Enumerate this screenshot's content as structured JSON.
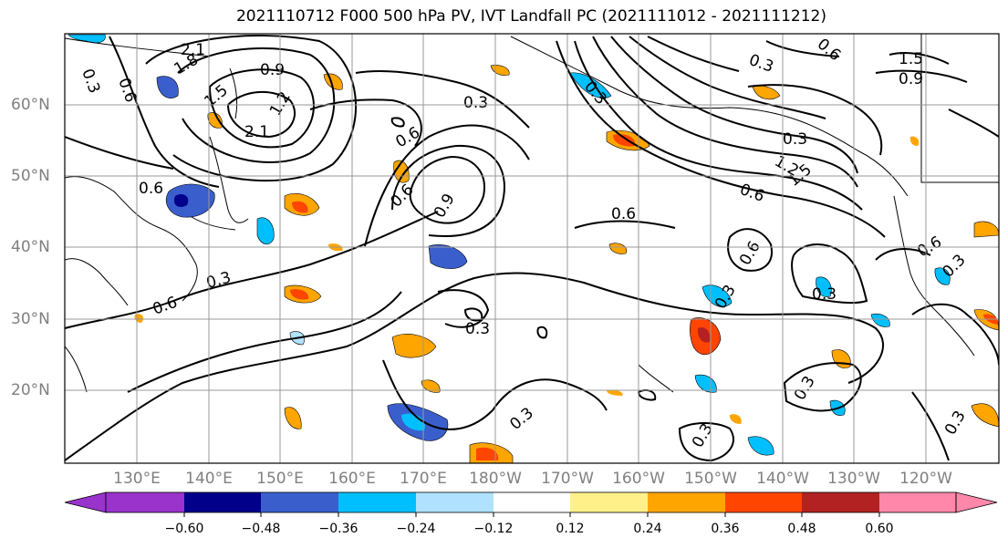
{
  "title": "2021110712 F000 500 hPa PV, IVT Landfall PC (2021111012 - 2021111212)",
  "latitude_labels": [
    "60°N",
    "50°N",
    "40°N",
    "30°N",
    "20°N"
  ],
  "longitude_labels": [
    "130°E",
    "140°E",
    "150°E",
    "160°E",
    "170°E",
    "180°W",
    "170°W",
    "160°W",
    "150°W",
    "140°W",
    "130°W",
    "120°W"
  ],
  "contour_labels": [
    "2.1",
    "1.8",
    "0.9",
    "1.5",
    "1.2",
    "2.1",
    "0.3",
    "0.6",
    "0.3",
    "0.6",
    "0.9",
    "0.6",
    "0.6",
    "0.3",
    "0.6",
    "0.3",
    "0.6",
    "0.3",
    "0.3",
    "0.3",
    "0.3",
    "0.3",
    "0.6",
    "1.2",
    "1.5",
    "0.3",
    "0.6",
    "0.9",
    "1.5",
    "0.6",
    "0.3",
    "0.3",
    "0.6",
    "0.3",
    "0.3"
  ],
  "colorbar": {
    "ticks": [
      "−0.60",
      "−0.48",
      "−0.36",
      "−0.24",
      "−0.12",
      "0.12",
      "0.24",
      "0.36",
      "0.48",
      "0.60"
    ],
    "colors": [
      "#9933cc",
      "#00008b",
      "#3a5fcd",
      "#00bfff",
      "#b0e2ff",
      "#ffffff",
      "#fff08a",
      "#ffa500",
      "#ff4500",
      "#b22222",
      "#ff88aa"
    ]
  }
}
